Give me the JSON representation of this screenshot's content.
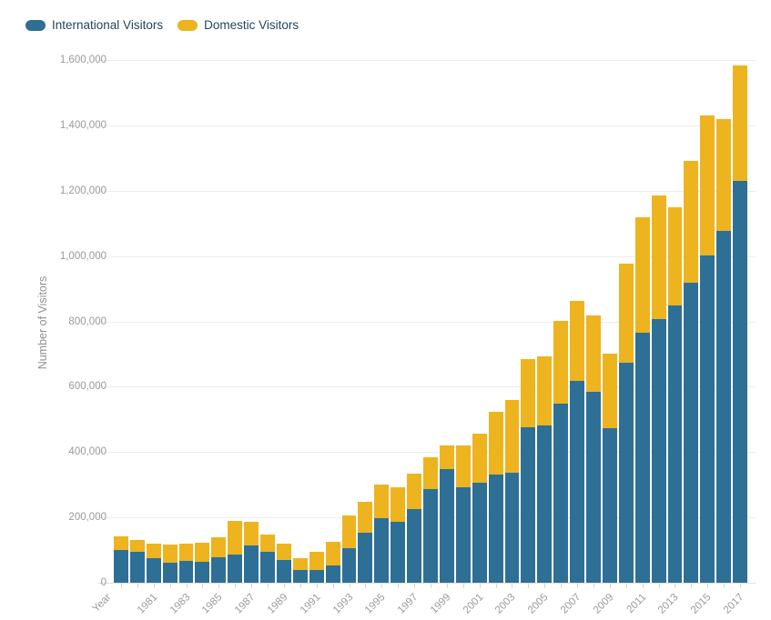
{
  "legend": {
    "items": [
      {
        "label": "International Visitors",
        "color": "#2e6f96"
      },
      {
        "label": "Domestic Visitors",
        "color": "#edb41f"
      }
    ]
  },
  "chart_data": {
    "type": "bar",
    "stacked": true,
    "title": "",
    "xlabel": "Year",
    "ylabel": "Number of Visitors",
    "ylim": [
      0,
      1600000
    ],
    "y_ticks": [
      0,
      200000,
      400000,
      600000,
      800000,
      1000000,
      1200000,
      1400000,
      1600000
    ],
    "grid": true,
    "legend_position": "top-left",
    "x_axis_start_label": "Year",
    "x_tick_years": [
      1981,
      1983,
      1985,
      1987,
      1989,
      1991,
      1993,
      1995,
      1997,
      1999,
      2001,
      2003,
      2005,
      2007,
      2009,
      2011,
      2013,
      2015,
      2017
    ],
    "categories": [
      1979,
      1980,
      1981,
      1982,
      1983,
      1984,
      1985,
      1986,
      1987,
      1988,
      1989,
      1990,
      1991,
      1992,
      1993,
      1994,
      1995,
      1996,
      1997,
      1998,
      1999,
      2000,
      2001,
      2002,
      2003,
      2004,
      2005,
      2006,
      2007,
      2008,
      2009,
      2010,
      2011,
      2012,
      2013,
      2014,
      2015,
      2016,
      2017
    ],
    "series": [
      {
        "name": "International Visitors",
        "color": "#2e6f96",
        "values": [
          100000,
          95000,
          75000,
          61000,
          67000,
          64000,
          78000,
          86000,
          114000,
          95000,
          70000,
          38000,
          40000,
          54000,
          105000,
          154000,
          198000,
          186000,
          225000,
          286000,
          349000,
          293000,
          307000,
          330000,
          337000,
          476000,
          482000,
          547000,
          617000,
          584000,
          472000,
          674000,
          766000,
          808000,
          848000,
          917000,
          1003000,
          1077000,
          1230000
        ]
      },
      {
        "name": "Domestic Visitors",
        "color": "#edb41f",
        "values": [
          42000,
          36000,
          45000,
          56000,
          53000,
          58000,
          61000,
          103000,
          72000,
          52000,
          50000,
          37000,
          54000,
          71000,
          100000,
          95000,
          102000,
          107000,
          109000,
          97000,
          71000,
          127000,
          150000,
          194000,
          222000,
          209000,
          212000,
          255000,
          246000,
          234000,
          230000,
          304000,
          353000,
          378000,
          301000,
          373000,
          428000,
          343000,
          352000
        ]
      }
    ]
  }
}
